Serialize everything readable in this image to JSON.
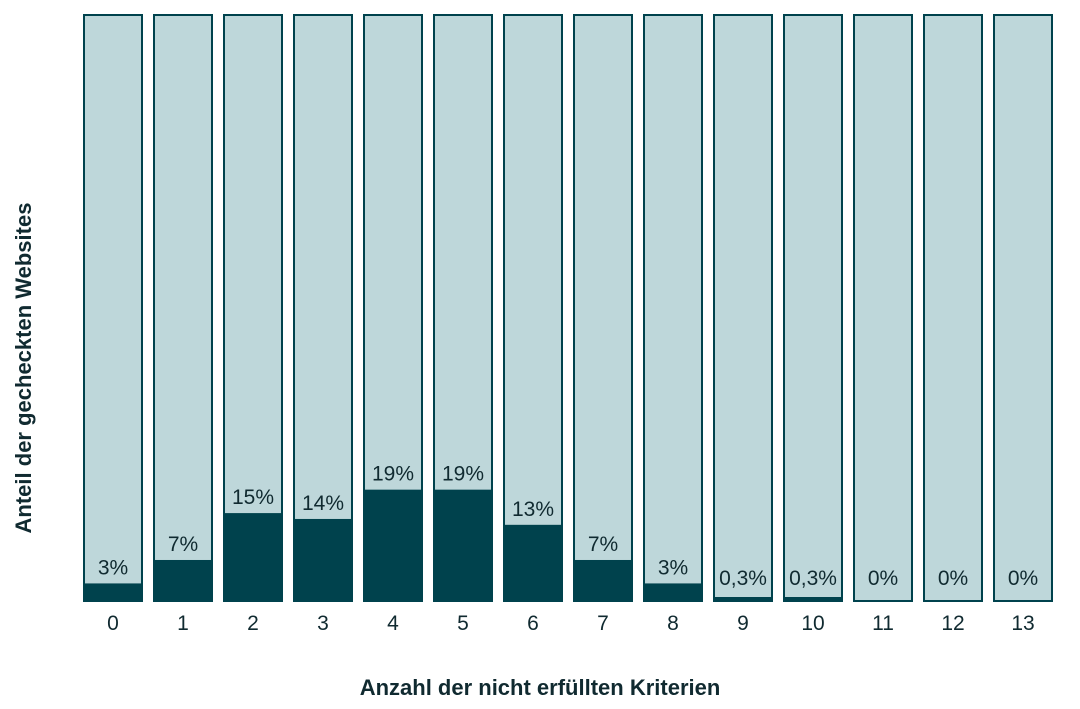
{
  "chart_data": {
    "type": "bar",
    "categories": [
      "0",
      "1",
      "2",
      "3",
      "4",
      "5",
      "6",
      "7",
      "8",
      "9",
      "10",
      "11",
      "12",
      "13"
    ],
    "values": [
      3,
      7,
      15,
      14,
      19,
      19,
      13,
      7,
      3,
      0.3,
      0.3,
      0,
      0,
      0
    ],
    "value_labels": [
      "3%",
      "7%",
      "15%",
      "14%",
      "19%",
      "19%",
      "13%",
      "7%",
      "3%",
      "0,3%",
      "0,3%",
      "0%",
      "0%",
      "0%"
    ],
    "xlabel": "Anzahl der nicht erfüllten Kriterien",
    "ylabel": "Anteil der gecheckten Websites",
    "ylim": [
      0,
      100
    ],
    "grid": false,
    "colors": {
      "fill": "#00424d",
      "background": "#bed7da",
      "text": "#102a30"
    }
  }
}
